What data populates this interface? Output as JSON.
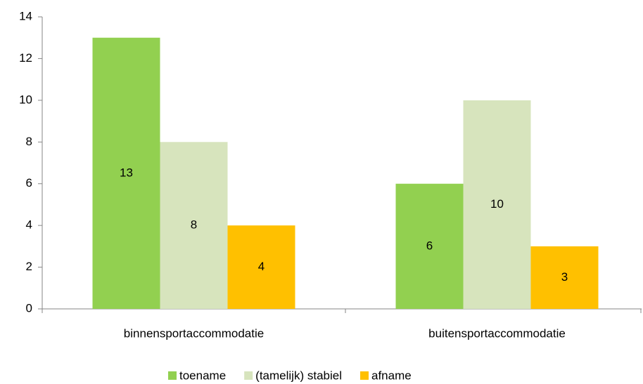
{
  "chart_data": {
    "type": "bar",
    "categories": [
      "binnensportaccommodatie",
      "buitensportaccommodatie"
    ],
    "series": [
      {
        "name": "toename",
        "color": "#92d050",
        "values": [
          13,
          6
        ]
      },
      {
        "name": "(tamelijk) stabiel",
        "color": "#d7e4bd",
        "values": [
          8,
          10
        ]
      },
      {
        "name": "afname",
        "color": "#ffc000",
        "values": [
          4,
          3
        ]
      }
    ],
    "ylim": [
      0,
      14
    ],
    "yticks": [
      0,
      2,
      4,
      6,
      8,
      10,
      12,
      14
    ],
    "grid": false,
    "legend": "bottom"
  }
}
